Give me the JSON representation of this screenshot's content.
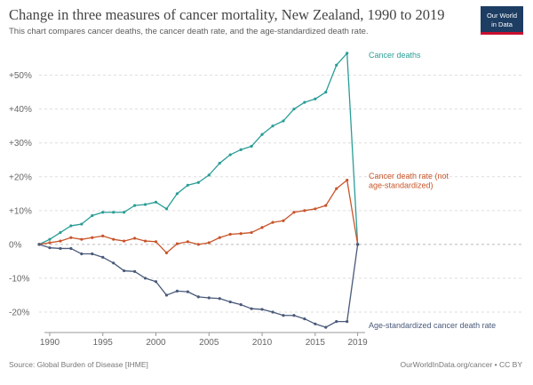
{
  "header": {
    "title": "Change in three measures of cancer mortality, New Zealand, 1990 to 2019",
    "subtitle": "This chart compares cancer deaths, the cancer death rate, and the age-standardized death rate."
  },
  "logo": {
    "line1": "Our World",
    "line2": "in Data"
  },
  "footer": {
    "source": "Source: Global Burden of Disease [IHME]",
    "credit": "OurWorldInData.org/cancer • CC BY"
  },
  "colors": {
    "cancer_deaths": "#2a9d96",
    "death_rate": "#c8552a",
    "age_standardized": "#4a5a7a",
    "grid": "#dddddd",
    "axis_text": "#666666"
  },
  "chart_data": {
    "type": "line",
    "xlim": [
      1989.5,
      2019.7
    ],
    "ylim": [
      -25,
      57
    ],
    "x_ticks": [
      1990,
      1995,
      2000,
      2005,
      2010,
      2015,
      2019
    ],
    "x_tick_labels": [
      "1990",
      "1995",
      "2000",
      "2005",
      "2010",
      "2015",
      "2019"
    ],
    "y_ticks": [
      -20,
      -10,
      0,
      10,
      20,
      30,
      40,
      50
    ],
    "y_tick_labels": [
      "-20%",
      "-10%",
      "0%",
      "+10%",
      "+20%",
      "+30%",
      "+40%",
      "+50%"
    ],
    "grid": "horizontal-dashed",
    "x": [
      1989,
      1990,
      1991,
      1992,
      1993,
      1994,
      1995,
      1996,
      1997,
      1998,
      1999,
      2000,
      2001,
      2002,
      2003,
      2004,
      2005,
      2006,
      2007,
      2008,
      2009,
      2010,
      2011,
      2012,
      2013,
      2014,
      2015,
      2016,
      2017,
      2018,
      2019
    ],
    "series": [
      {
        "key": "cancer_deaths",
        "name": "Cancer deaths",
        "values": [
          0,
          1.5,
          3.5,
          5.5,
          6,
          8.5,
          9.5,
          9.5,
          9.5,
          11.5,
          11.8,
          12.5,
          10.5,
          15,
          17.5,
          18.3,
          20.5,
          24,
          26.5,
          28,
          29,
          32.5,
          35,
          36.5,
          40,
          42,
          43,
          45,
          53,
          56.5,
          0
        ]
      },
      {
        "key": "death_rate",
        "name": "Cancer death rate (not age-standardized)",
        "values": [
          0,
          0.5,
          1,
          2,
          1.5,
          2,
          2.5,
          1.5,
          1,
          1.8,
          1,
          0.8,
          -2.5,
          0.2,
          0.8,
          0,
          0.5,
          2,
          3,
          3.2,
          3.5,
          5,
          6.5,
          7,
          9.5,
          10,
          10.5,
          11.5,
          16.5,
          19,
          0
        ]
      },
      {
        "key": "age_standardized",
        "name": "Age-standardized cancer death rate",
        "values": [
          0,
          -1,
          -1.2,
          -1.2,
          -2.8,
          -2.8,
          -3.8,
          -5.5,
          -7.8,
          -8,
          -10,
          -11,
          -15,
          -13.8,
          -14,
          -15.5,
          -15.8,
          -16,
          -17,
          -17.8,
          -19,
          -19.2,
          -20,
          -21,
          -21,
          -22,
          -23.5,
          -24.5,
          -22.8,
          -22.8,
          0
        ]
      }
    ]
  }
}
